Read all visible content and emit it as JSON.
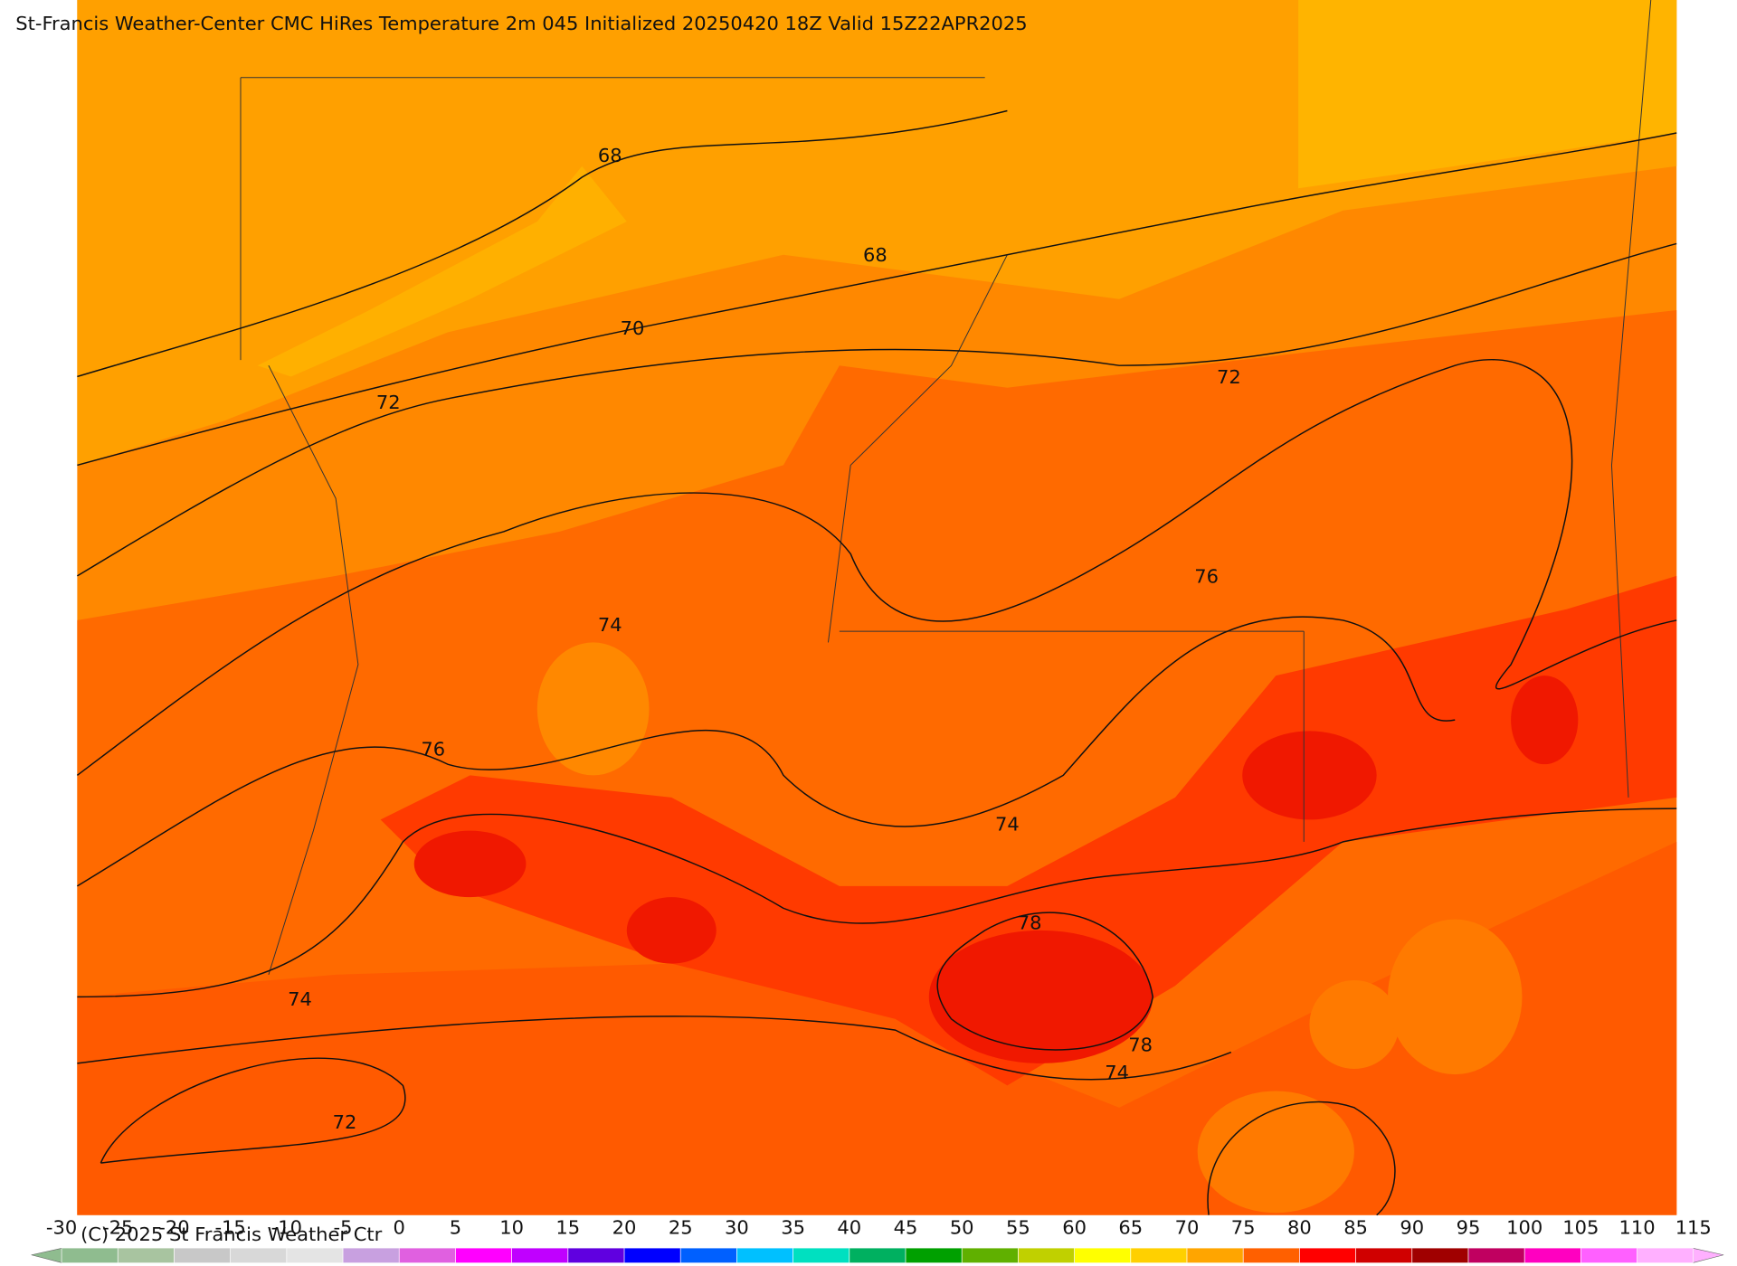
{
  "title": "St-Francis Weather-Center CMC HiRes Temperature 2m  045 Initialized 20250420 18Z Valid 15Z22APR2025",
  "copyright": "(C) 2025 St Francis Weather Ctr",
  "contour_labels": [
    68,
    68,
    70,
    72,
    72,
    76,
    74,
    76,
    74,
    78,
    78,
    74,
    74,
    72
  ],
  "colorbar": {
    "ticks": [
      -30,
      -25,
      -20,
      -15,
      -10,
      -5,
      0,
      5,
      10,
      15,
      20,
      25,
      30,
      35,
      40,
      45,
      50,
      55,
      60,
      65,
      70,
      75,
      80,
      85,
      90,
      95,
      100,
      105,
      110,
      115
    ],
    "colors": [
      "#8fbc8f",
      "#a8c4a0",
      "#c8c8c8",
      "#d8d8d8",
      "#e4e4e4",
      "#c8a0e0",
      "#e060e0",
      "#ff00ff",
      "#c000ff",
      "#6000e0",
      "#0000ff",
      "#0060ff",
      "#00c0ff",
      "#00e0c0",
      "#00b060",
      "#00a000",
      "#60b000",
      "#c0d000",
      "#ffff00",
      "#ffd000",
      "#ffa500",
      "#ff6000",
      "#ff0000",
      "#d00000",
      "#a00000",
      "#c00060",
      "#ff00c0",
      "#ff60ff",
      "#ffb0ff"
    ]
  }
}
